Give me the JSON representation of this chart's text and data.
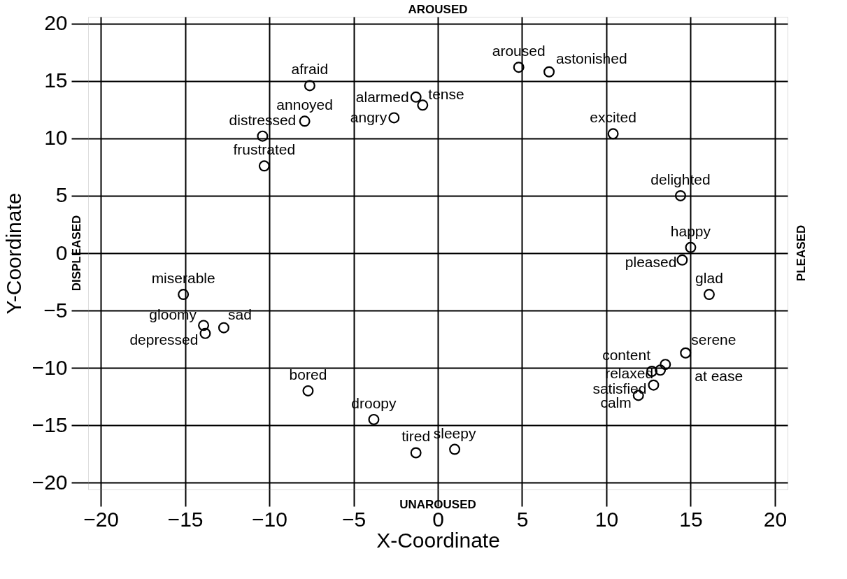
{
  "chart_data": {
    "type": "scatter",
    "xlabel": "X-Coordinate",
    "ylabel": "Y-Coordinate",
    "xlim": [
      -20.75,
      20.75
    ],
    "ylim": [
      -20.6,
      20.6
    ],
    "xticks": [
      -20,
      -15,
      -10,
      -5,
      0,
      5,
      10,
      15,
      20
    ],
    "yticks": [
      -20,
      -15,
      -10,
      -5,
      0,
      5,
      10,
      15,
      20
    ],
    "grid": true,
    "marker": "circle",
    "series": [
      {
        "color": "#000000",
        "x": [
          -7.6,
          -1.3,
          -0.9,
          -2.6,
          -7.9,
          -10.4,
          -10.3,
          4.8,
          6.6,
          10.4,
          14.4,
          15.0,
          14.5,
          16.1,
          14.7,
          13.5,
          13.2,
          12.7,
          12.8,
          11.9,
          1.0,
          -15.1,
          -13.9,
          -13.8,
          -12.7,
          -7.7,
          -3.8,
          -1.3
        ],
        "values": [
          14.6,
          13.6,
          12.9,
          11.8,
          11.5,
          10.2,
          7.6,
          16.2,
          15.8,
          10.4,
          5.0,
          0.5,
          -0.6,
          -3.6,
          -8.7,
          -9.7,
          -10.2,
          -10.3,
          -11.5,
          -12.4,
          -17.1,
          -3.6,
          -6.3,
          -7.0,
          -6.5,
          -12.0,
          -14.5,
          -17.4
        ]
      }
    ],
    "annotations": [
      "AROUSED",
      "UNAROUSED",
      "DISPLEASED",
      "PLEASED",
      {
        "text": "afraid",
        "x": -7.6,
        "y": 14.6
      },
      {
        "text": "alarmed",
        "x": -1.3,
        "y": 13.6
      },
      {
        "text": "tense",
        "x": -0.9,
        "y": 12.9
      },
      {
        "text": "angry",
        "x": -2.6,
        "y": 11.8
      },
      {
        "text": "annoyed",
        "x": -7.9,
        "y": 11.5
      },
      {
        "text": "distressed",
        "x": -10.4,
        "y": 10.2
      },
      {
        "text": "frustrated",
        "x": -10.3,
        "y": 7.6
      },
      {
        "text": "aroused",
        "x": 4.8,
        "y": 16.2
      },
      {
        "text": "astonished",
        "x": 6.6,
        "y": 15.8
      },
      {
        "text": "excited",
        "x": 10.4,
        "y": 10.4
      },
      {
        "text": "delighted",
        "x": 14.4,
        "y": 5.0
      },
      {
        "text": "happy",
        "x": 15.0,
        "y": 0.5
      },
      {
        "text": "pleased",
        "x": 14.5,
        "y": -0.6
      },
      {
        "text": "glad",
        "x": 16.1,
        "y": -3.6
      },
      {
        "text": "serene",
        "x": 14.7,
        "y": -8.7
      },
      {
        "text": "at ease",
        "x": 13.5,
        "y": -9.7
      },
      {
        "text": "relaxed",
        "x": 13.2,
        "y": -10.2
      },
      {
        "text": "content",
        "x": 12.7,
        "y": -10.3
      },
      {
        "text": "satisfied",
        "x": 12.8,
        "y": -11.5
      },
      {
        "text": "calm",
        "x": 11.9,
        "y": -12.4
      },
      {
        "text": "sleepy",
        "x": 1.0,
        "y": -17.1
      },
      {
        "text": "miserable",
        "x": -15.1,
        "y": -3.6
      },
      {
        "text": "gloomy",
        "x": -13.9,
        "y": -6.3
      },
      {
        "text": "depressed",
        "x": -13.8,
        "y": -7.0
      },
      {
        "text": "sad",
        "x": -12.7,
        "y": -6.5
      },
      {
        "text": "bored",
        "x": -7.7,
        "y": -12.0
      },
      {
        "text": "droopy",
        "x": -3.8,
        "y": -14.5
      },
      {
        "text": "tired",
        "x": -1.3,
        "y": -17.4
      }
    ]
  }
}
